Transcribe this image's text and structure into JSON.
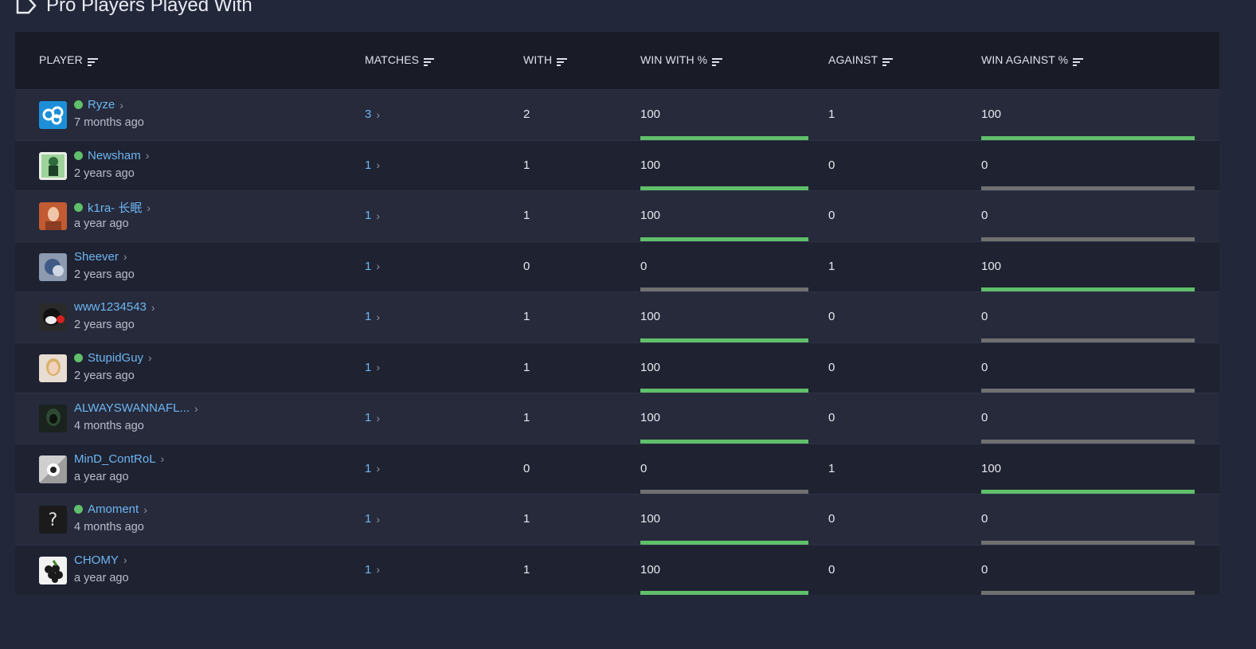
{
  "section": {
    "title": "Pro Players Played With"
  },
  "columns": {
    "player": "PLAYER",
    "matches": "MATCHES",
    "with": "WITH",
    "win_with": "WIN WITH %",
    "against": "AGAINST",
    "win_against": "WIN AGAINST %"
  },
  "colors": {
    "accent": "#6db6f2",
    "win": "#5fbf6a",
    "neutral_bar": "#707070"
  },
  "rows": [
    {
      "name": "Ryze",
      "online": true,
      "ago": "7 months ago",
      "matches": "3",
      "with": "2",
      "win_with": "100",
      "win_with_fraction": 1,
      "against": "1",
      "win_against": "100",
      "win_against_fraction": 1,
      "avatar": "cloud9-logo"
    },
    {
      "name": "Newsham",
      "online": true,
      "ago": "2 years ago",
      "matches": "1",
      "with": "1",
      "win_with": "100",
      "win_with_fraction": 1,
      "against": "0",
      "win_against": "0",
      "win_against_fraction": 0,
      "avatar": "cartoon-figure"
    },
    {
      "name": "k1ra- 长眠",
      "online": true,
      "ago": "a year ago",
      "matches": "1",
      "with": "1",
      "win_with": "100",
      "win_with_fraction": 1,
      "against": "0",
      "win_against": "0",
      "win_against_fraction": 0,
      "avatar": "red-hair-portrait"
    },
    {
      "name": "Sheever",
      "online": false,
      "ago": "2 years ago",
      "matches": "1",
      "with": "0",
      "win_with": "0",
      "win_with_fraction": 0,
      "against": "1",
      "win_against": "100",
      "win_against_fraction": 1,
      "avatar": "blue-creature"
    },
    {
      "name": "www1234543",
      "online": false,
      "ago": "2 years ago",
      "matches": "1",
      "with": "1",
      "win_with": "100",
      "win_with_fraction": 1,
      "against": "0",
      "win_against": "0",
      "win_against_fraction": 0,
      "avatar": "bear-mascot"
    },
    {
      "name": "StupidGuy",
      "online": true,
      "ago": "2 years ago",
      "matches": "1",
      "with": "1",
      "win_with": "100",
      "win_with_fraction": 1,
      "against": "0",
      "win_against": "0",
      "win_against_fraction": 0,
      "avatar": "blonde-portrait"
    },
    {
      "name": "ALWAYSWANNAFL...",
      "online": false,
      "ago": "4 months ago",
      "matches": "1",
      "with": "1",
      "win_with": "100",
      "win_with_fraction": 1,
      "against": "0",
      "win_against": "0",
      "win_against_fraction": 0,
      "avatar": "hooded-figure"
    },
    {
      "name": "MinD_ContRoL",
      "online": false,
      "ago": "a year ago",
      "matches": "1",
      "with": "0",
      "win_with": "0",
      "win_with_fraction": 0,
      "against": "1",
      "win_against": "100",
      "win_against_fraction": 1,
      "avatar": "cartoon-hand"
    },
    {
      "name": "Amoment",
      "online": true,
      "ago": "4 months ago",
      "matches": "1",
      "with": "1",
      "win_with": "100",
      "win_with_fraction": 1,
      "against": "0",
      "win_against": "0",
      "win_against_fraction": 0,
      "avatar": "question-mark"
    },
    {
      "name": "CHOMY",
      "online": false,
      "ago": "a year ago",
      "matches": "1",
      "with": "1",
      "win_with": "100",
      "win_with_fraction": 1,
      "against": "0",
      "win_against": "0",
      "win_against_fraction": 0,
      "avatar": "grapes"
    }
  ]
}
